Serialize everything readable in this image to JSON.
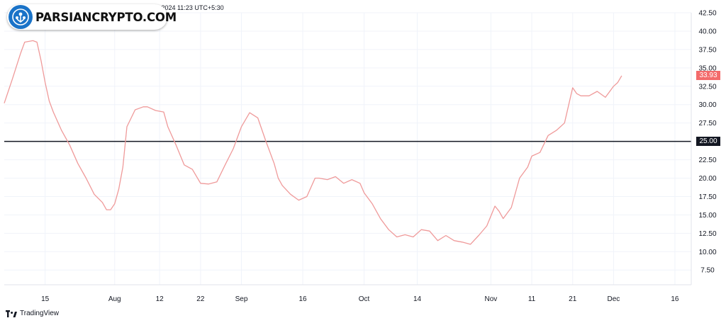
{
  "header": {
    "text": "Bel...p1 published on TradingView.com, Dec 04, 2024 11:23 UTC+5:30"
  },
  "watermark": {
    "text": "PARSIANCRYPTO.COM",
    "logo_icon": "parsiancrypto-logo-icon"
  },
  "footer": {
    "brand": "TradingView",
    "icon": "tradingview-logo-icon"
  },
  "colors": {
    "line": "#ef9a9a",
    "last_badge": "#f36b6b",
    "ref_line": "#131722",
    "ref_badge": "#131722",
    "logo_blue": "#1a73c8"
  },
  "chart_data": {
    "type": "line",
    "y_axis_position": "right",
    "ylim": [
      5.5,
      42.5
    ],
    "y_ticks": [
      "7.50",
      "10.00",
      "12.50",
      "15.00",
      "17.50",
      "20.00",
      "22.50",
      "25.00",
      "27.50",
      "30.00",
      "32.50",
      "35.00",
      "37.50",
      "40.00",
      "42.50"
    ],
    "x_ticks": [
      {
        "label": "15",
        "date": "2024-07-15"
      },
      {
        "label": "Aug",
        "date": "2024-08-01"
      },
      {
        "label": "12",
        "date": "2024-08-12"
      },
      {
        "label": "22",
        "date": "2024-08-22"
      },
      {
        "label": "Sep",
        "date": "2024-09-01"
      },
      {
        "label": "16",
        "date": "2024-09-16"
      },
      {
        "label": "Oct",
        "date": "2024-10-01"
      },
      {
        "label": "14",
        "date": "2024-10-14"
      },
      {
        "label": "Nov",
        "date": "2024-11-01"
      },
      {
        "label": "11",
        "date": "2024-11-11"
      },
      {
        "label": "21",
        "date": "2024-11-21"
      },
      {
        "label": "Dec",
        "date": "2024-12-01"
      },
      {
        "label": "16",
        "date": "2024-12-16"
      }
    ],
    "xlim": [
      "2024-07-05",
      "2024-12-20"
    ],
    "reference_line": {
      "value": 25.0,
      "label": "25.00"
    },
    "last_value_label": "33.93",
    "grid": true,
    "series": [
      {
        "x": [
          "2024-07-05",
          "2024-07-07",
          "2024-07-09",
          "2024-07-10",
          "2024-07-12",
          "2024-07-13",
          "2024-07-14",
          "2024-07-15",
          "2024-07-16",
          "2024-07-17",
          "2024-07-19",
          "2024-07-21",
          "2024-07-23",
          "2024-07-25",
          "2024-07-27",
          "2024-07-29",
          "2024-07-30",
          "2024-07-31",
          "2024-08-01",
          "2024-08-02",
          "2024-08-03",
          "2024-08-04",
          "2024-08-06",
          "2024-08-08",
          "2024-08-09",
          "2024-08-11",
          "2024-08-13",
          "2024-08-14",
          "2024-08-16",
          "2024-08-18",
          "2024-08-20",
          "2024-08-22",
          "2024-08-24",
          "2024-08-26",
          "2024-08-28",
          "2024-08-30",
          "2024-09-01",
          "2024-09-03",
          "2024-09-05",
          "2024-09-07",
          "2024-09-09",
          "2024-09-10",
          "2024-09-11",
          "2024-09-13",
          "2024-09-15",
          "2024-09-17",
          "2024-09-19",
          "2024-09-20",
          "2024-09-22",
          "2024-09-24",
          "2024-09-26",
          "2024-09-28",
          "2024-09-30",
          "2024-10-01",
          "2024-10-03",
          "2024-10-05",
          "2024-10-07",
          "2024-10-09",
          "2024-10-11",
          "2024-10-13",
          "2024-10-15",
          "2024-10-17",
          "2024-10-19",
          "2024-10-21",
          "2024-10-23",
          "2024-10-25",
          "2024-10-27",
          "2024-10-29",
          "2024-10-31",
          "2024-11-02",
          "2024-11-03",
          "2024-11-04",
          "2024-11-06",
          "2024-11-08",
          "2024-11-10",
          "2024-11-11",
          "2024-11-13",
          "2024-11-15",
          "2024-11-17",
          "2024-11-19",
          "2024-11-21",
          "2024-11-22",
          "2024-11-23",
          "2024-11-25",
          "2024-11-27",
          "2024-11-29",
          "2024-12-01",
          "2024-12-02",
          "2024-12-03"
        ],
        "y": [
          30.2,
          33.5,
          37.0,
          38.5,
          38.7,
          38.5,
          36.0,
          33.0,
          30.5,
          29.0,
          26.5,
          24.5,
          22.0,
          20.0,
          17.8,
          16.7,
          15.7,
          15.7,
          16.5,
          18.5,
          21.5,
          27.0,
          29.3,
          29.7,
          29.7,
          29.2,
          29.0,
          27.0,
          24.5,
          21.8,
          21.2,
          19.3,
          19.2,
          19.5,
          21.8,
          24.0,
          27.0,
          28.9,
          28.2,
          25.0,
          22.0,
          20.0,
          19.0,
          17.8,
          17.0,
          17.5,
          20.0,
          20.0,
          19.8,
          20.2,
          19.3,
          19.8,
          19.3,
          18.0,
          16.5,
          14.5,
          13.0,
          12.0,
          12.3,
          12.0,
          13.0,
          12.8,
          11.5,
          12.2,
          11.5,
          11.3,
          11.0,
          12.2,
          13.5,
          16.2,
          15.5,
          14.5,
          16.0,
          20.0,
          21.5,
          23.0,
          23.5,
          25.8,
          26.5,
          27.5,
          32.3,
          31.5,
          31.2,
          31.2,
          31.8,
          31.0,
          32.5,
          33.0,
          33.93
        ]
      }
    ]
  }
}
